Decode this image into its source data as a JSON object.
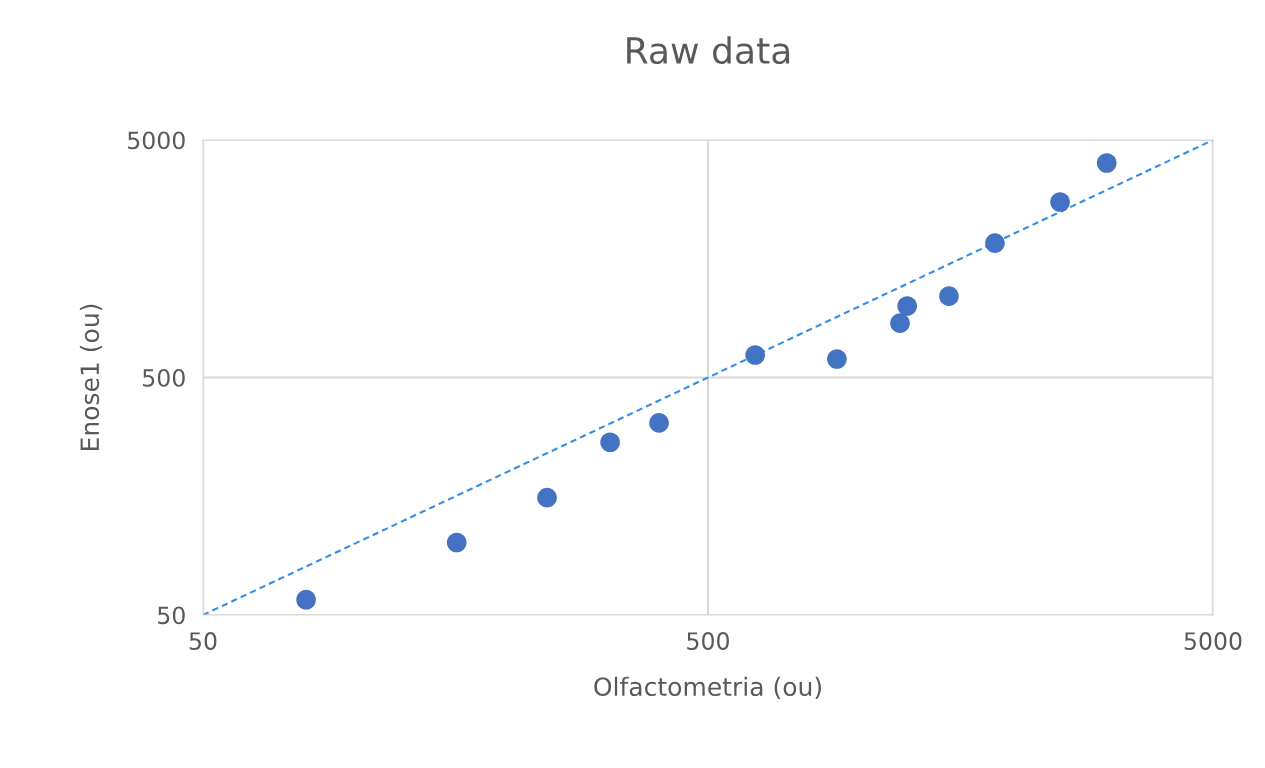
{
  "chart_data": {
    "type": "scatter",
    "title": "Raw data",
    "xlabel": "Olfactometria (ou)",
    "ylabel": "Enose1 (ou)",
    "log": "xy",
    "xlim": [
      50,
      5000
    ],
    "ylim": [
      50,
      5000
    ],
    "xticks": [
      50,
      500,
      5000
    ],
    "yticks": [
      50,
      500,
      5000
    ],
    "grid": true,
    "series": [
      {
        "color": "#4472c4",
        "marker": "circle",
        "x": [
          80,
          159,
          240,
          320,
          400,
          620,
          900,
          1200,
          1240,
          1500,
          1850,
          2490,
          3080
        ],
        "values": [
          58,
          101,
          156,
          267,
          322,
          622,
          598,
          847,
          1000,
          1100,
          1840,
          2740,
          4000
        ]
      },
      {
        "type": "line",
        "color": "#2e8ef0",
        "line_style": "dashed",
        "marker": "none",
        "x": [
          50,
          5000
        ],
        "values": [
          50,
          5000
        ]
      }
    ]
  }
}
